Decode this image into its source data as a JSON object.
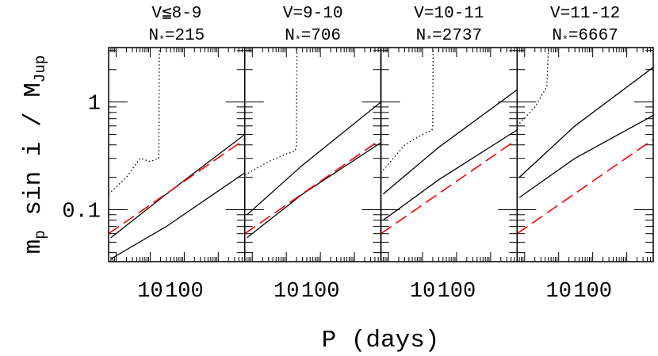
{
  "figure": {
    "xlabel": "P (days)",
    "ylabel": [
      {
        "text": "m"
      },
      {
        "text": "p",
        "sub": true
      },
      {
        "text": " sin i / M"
      },
      {
        "text": "Jup",
        "sub": true
      }
    ]
  },
  "chart_data": [
    {
      "type": "line",
      "title": "V≦8-9",
      "count_label": [
        {
          "text": "N"
        },
        {
          "text": "*",
          "sub": true
        },
        {
          "text": "=215"
        }
      ],
      "xlim": [
        0.6,
        6000
      ],
      "xticks": [
        10,
        100
      ],
      "ylim": [
        0.033,
        3.2
      ],
      "yticks": [
        {
          "value": 0.1,
          "label": "0.1"
        },
        1
      ],
      "log_x": true,
      "log_y": true,
      "series": [
        {
          "style": "dotted",
          "color": "#000000",
          "x": [
            0.6,
            2,
            5,
            10,
            17,
            18,
            18.5
          ],
          "values": [
            0.14,
            0.2,
            0.3,
            0.28,
            0.3,
            0.3,
            3.2
          ]
        },
        {
          "style": "solid",
          "color": "#000000",
          "x": [
            0.7,
            30,
            6000
          ],
          "values": [
            0.055,
            0.14,
            0.5
          ]
        },
        {
          "style": "solid",
          "color": "#000000",
          "x": [
            0.7,
            30,
            6000
          ],
          "values": [
            0.035,
            0.07,
            0.22
          ]
        },
        {
          "style": "dashed",
          "color": "#ff0000",
          "x": [
            0.6,
            6000
          ],
          "values": [
            0.06,
            0.45
          ]
        }
      ]
    },
    {
      "type": "line",
      "title": "V=9-10",
      "count_label": [
        {
          "text": "N"
        },
        {
          "text": "*",
          "sub": true
        },
        {
          "text": "=706"
        }
      ],
      "xlim": [
        0.6,
        6000
      ],
      "xticks": [
        10,
        100
      ],
      "ylim": [
        0.033,
        3.2
      ],
      "log_x": true,
      "log_y": true,
      "series": [
        {
          "style": "dotted",
          "color": "#000000",
          "x": [
            0.6,
            3,
            10,
            18,
            20,
            20.5
          ],
          "values": [
            0.21,
            0.28,
            0.33,
            0.35,
            0.4,
            3.2
          ]
        },
        {
          "style": "solid",
          "color": "#000000",
          "x": [
            0.7,
            30,
            6000
          ],
          "values": [
            0.09,
            0.26,
            1.0
          ]
        },
        {
          "style": "solid",
          "color": "#000000",
          "x": [
            0.7,
            30,
            6000
          ],
          "values": [
            0.055,
            0.14,
            0.42
          ]
        },
        {
          "style": "dashed",
          "color": "#ff0000",
          "x": [
            0.6,
            6000
          ],
          "values": [
            0.06,
            0.45
          ]
        }
      ]
    },
    {
      "type": "line",
      "title": "V=10-11",
      "count_label": [
        {
          "text": "N"
        },
        {
          "text": "*",
          "sub": true
        },
        {
          "text": "=2737"
        }
      ],
      "xlim": [
        0.6,
        6000
      ],
      "xticks": [
        10,
        100
      ],
      "ylim": [
        0.033,
        3.2
      ],
      "log_x": true,
      "log_y": true,
      "series": [
        {
          "style": "dotted",
          "color": "#000000",
          "x": [
            0.6,
            3,
            10,
            19,
            20,
            20.5
          ],
          "values": [
            0.22,
            0.4,
            0.5,
            0.55,
            0.6,
            3.2
          ]
        },
        {
          "style": "solid",
          "color": "#000000",
          "x": [
            0.7,
            30,
            6000
          ],
          "values": [
            0.14,
            0.38,
            1.3
          ]
        },
        {
          "style": "solid",
          "color": "#000000",
          "x": [
            0.7,
            30,
            6000
          ],
          "values": [
            0.08,
            0.19,
            0.55
          ]
        },
        {
          "style": "dashed",
          "color": "#ff0000",
          "x": [
            0.6,
            6000
          ],
          "values": [
            0.06,
            0.45
          ]
        }
      ]
    },
    {
      "type": "line",
      "title": "V=11-12",
      "count_label": [
        {
          "text": "N"
        },
        {
          "text": "*",
          "sub": true
        },
        {
          "text": "=6667"
        }
      ],
      "xlim": [
        0.6,
        6000
      ],
      "xticks": [
        10,
        100
      ],
      "ylim": [
        0.033,
        3.2
      ],
      "log_x": true,
      "log_y": true,
      "series": [
        {
          "style": "dotted",
          "color": "#000000",
          "x": [
            0.6,
            2,
            4,
            4.5,
            5
          ],
          "values": [
            0.6,
            0.9,
            1.3,
            1.4,
            3.2
          ]
        },
        {
          "style": "solid",
          "color": "#000000",
          "x": [
            0.7,
            30,
            6000
          ],
          "values": [
            0.2,
            0.6,
            2.1
          ]
        },
        {
          "style": "solid",
          "color": "#000000",
          "x": [
            0.7,
            30,
            6000
          ],
          "values": [
            0.13,
            0.3,
            0.75
          ]
        },
        {
          "style": "dashed",
          "color": "#ff0000",
          "x": [
            0.6,
            6000
          ],
          "values": [
            0.06,
            0.45
          ]
        }
      ]
    }
  ]
}
